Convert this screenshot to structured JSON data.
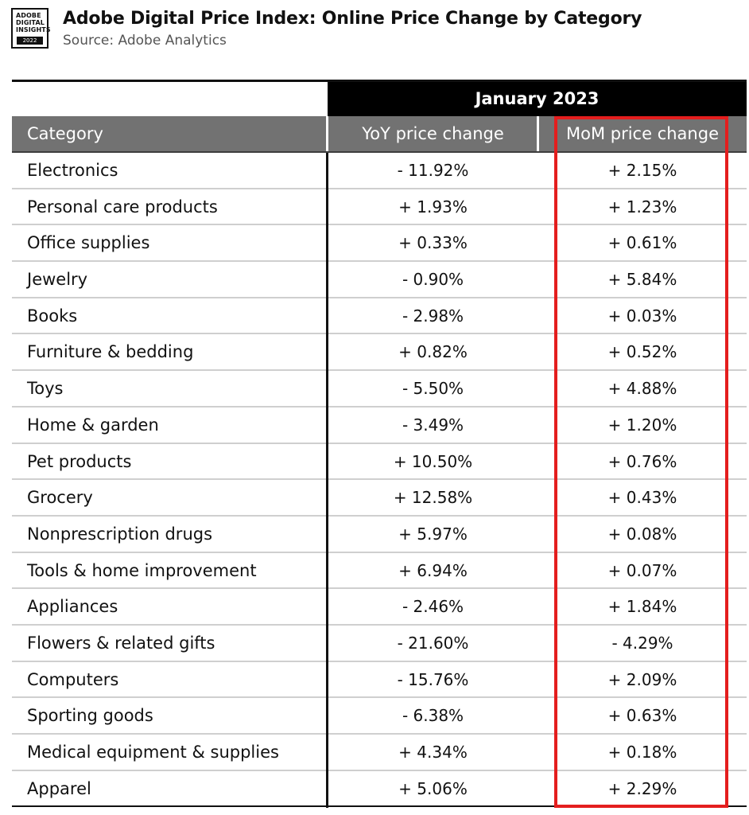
{
  "logo": {
    "lines": [
      "ADOBE",
      "DIGITAL",
      "INSIGHTS"
    ],
    "year": "2022"
  },
  "title": "Adobe Digital Price Index: Online Price Change by Category",
  "subtitle": "Source: Adobe Analytics",
  "colors": {
    "header_gray": "#727272",
    "band_black": "#000000",
    "highlight_red": "#e41e1e"
  },
  "chart_data": {
    "type": "table",
    "period_label": "January 2023",
    "columns": [
      "Category",
      "YoY price change",
      "MoM price change"
    ],
    "rows": [
      {
        "category": "Electronics",
        "yoy": "- 11.92%",
        "mom": "+ 2.15%"
      },
      {
        "category": "Personal care products",
        "yoy": "+ 1.93%",
        "mom": "+ 1.23%"
      },
      {
        "category": "Office supplies",
        "yoy": "+ 0.33%",
        "mom": "+ 0.61%"
      },
      {
        "category": "Jewelry",
        "yoy": "- 0.90%",
        "mom": "+ 5.84%"
      },
      {
        "category": "Books",
        "yoy": "- 2.98%",
        "mom": "+ 0.03%"
      },
      {
        "category": "Furniture & bedding",
        "yoy": "+ 0.82%",
        "mom": "+ 0.52%"
      },
      {
        "category": "Toys",
        "yoy": "- 5.50%",
        "mom": "+ 4.88%"
      },
      {
        "category": "Home & garden",
        "yoy": "- 3.49%",
        "mom": "+ 1.20%"
      },
      {
        "category": "Pet products",
        "yoy": "+ 10.50%",
        "mom": "+ 0.76%"
      },
      {
        "category": "Grocery",
        "yoy": "+ 12.58%",
        "mom": "+ 0.43%"
      },
      {
        "category": "Nonprescription drugs",
        "yoy": "+ 5.97%",
        "mom": "+ 0.08%"
      },
      {
        "category": "Tools & home improvement",
        "yoy": "+ 6.94%",
        "mom": "+ 0.07%"
      },
      {
        "category": "Appliances",
        "yoy": "- 2.46%",
        "mom": "+ 1.84%"
      },
      {
        "category": "Flowers & related gifts",
        "yoy": "- 21.60%",
        "mom": "- 4.29%"
      },
      {
        "category": "Computers",
        "yoy": "- 15.76%",
        "mom": "+ 2.09%"
      },
      {
        "category": "Sporting goods",
        "yoy": "- 6.38%",
        "mom": "+ 0.63%"
      },
      {
        "category": "Medical equipment & supplies",
        "yoy": "+ 4.34%",
        "mom": "+ 0.18%"
      },
      {
        "category": "Apparel",
        "yoy": "+ 5.06%",
        "mom": "+ 2.29%"
      }
    ],
    "highlighted_column": "MoM price change"
  }
}
